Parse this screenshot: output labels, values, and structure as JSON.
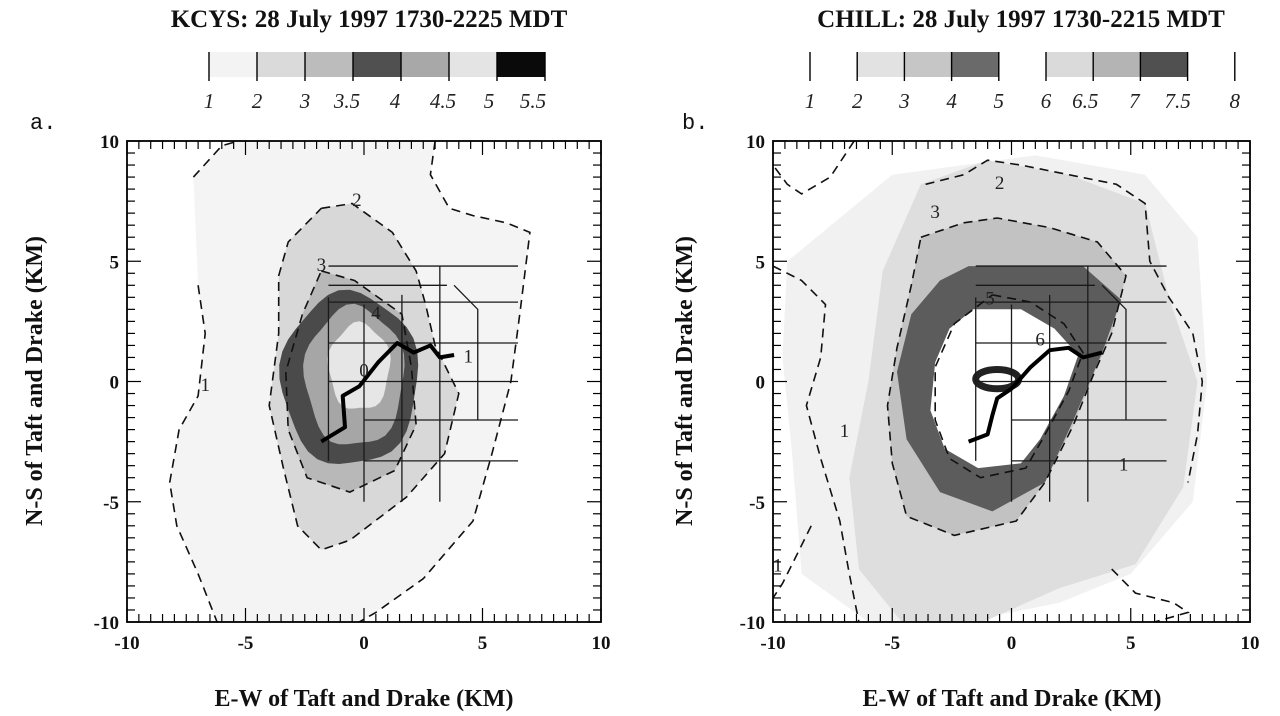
{
  "chart_data": [
    {
      "panel": "a.",
      "type": "contour",
      "title": "KCYS: 28 July 1997 1730-2225 MDT",
      "xlabel": "E-W of Taft and Drake (KM)",
      "ylabel": "N-S of Taft and Drake (KM)",
      "xlim": [
        -10,
        10
      ],
      "ylim": [
        -10,
        10
      ],
      "xticks": [
        "-10",
        "-5",
        "0",
        "5",
        "10"
      ],
      "yticks": [
        "-10",
        "-5",
        "0",
        "5",
        "10"
      ],
      "colorbar": {
        "labels": [
          "1",
          "2",
          "3",
          "3.5",
          "4",
          "4.5",
          "5",
          "5.5"
        ],
        "fills": [
          "#f3f3f3",
          "#dadada",
          "#bcbcbc",
          "#505050",
          "#a8a8a8",
          "#e4e4e4",
          "#0a0a0a"
        ]
      },
      "contour_labels": [
        {
          "text": "1",
          "x": -6.7,
          "y": -0.4
        },
        {
          "text": "2",
          "x": -0.3,
          "y": 7.3
        },
        {
          "text": "3",
          "x": -1.8,
          "y": 4.6
        },
        {
          "text": "4",
          "x": 0.5,
          "y": 2.6
        },
        {
          "text": "0",
          "x": 0.0,
          "y": 0.2
        },
        {
          "text": "1",
          "x": 4.4,
          "y": 0.8
        }
      ],
      "dashed_contours": [
        [
          [
            -7.2,
            8.5
          ],
          [
            -6.0,
            9.8
          ],
          [
            -5.3,
            10.0
          ]
        ],
        [
          [
            -7.0,
            4.0
          ],
          [
            -6.7,
            2.0
          ],
          [
            -7.0,
            -0.6
          ],
          [
            -7.8,
            -2.0
          ],
          [
            -8.2,
            -4.2
          ],
          [
            -7.9,
            -6.0
          ],
          [
            -7.0,
            -8.0
          ],
          [
            -6.2,
            -10.0
          ]
        ],
        [
          [
            3.0,
            10.0
          ],
          [
            2.8,
            8.6
          ],
          [
            3.6,
            7.2
          ],
          [
            4.6,
            6.9
          ],
          [
            6.0,
            6.6
          ],
          [
            7.0,
            6.2
          ],
          [
            6.6,
            3.0
          ],
          [
            6.2,
            0.0
          ],
          [
            5.4,
            -3.0
          ],
          [
            4.6,
            -5.8
          ],
          [
            2.5,
            -8.2
          ],
          [
            0.5,
            -9.6
          ],
          [
            -0.2,
            -10.0
          ]
        ],
        [
          [
            -1.8,
            7.2
          ],
          [
            -0.5,
            7.4
          ],
          [
            1.2,
            6.2
          ],
          [
            2.2,
            4.6
          ],
          [
            2.6,
            3.2
          ],
          [
            3.0,
            1.5
          ],
          [
            4.0,
            -0.5
          ],
          [
            3.4,
            -3.0
          ],
          [
            1.8,
            -4.8
          ],
          [
            -0.6,
            -6.6
          ],
          [
            -1.8,
            -7.0
          ],
          [
            -2.8,
            -6.0
          ],
          [
            -3.4,
            -3.6
          ],
          [
            -4.0,
            -1.0
          ],
          [
            -3.6,
            2.0
          ],
          [
            -3.6,
            4.4
          ],
          [
            -3.2,
            5.8
          ],
          [
            -1.8,
            7.2
          ]
        ],
        [
          [
            -1.8,
            4.6
          ],
          [
            -0.4,
            4.2
          ],
          [
            1.6,
            2.8
          ],
          [
            2.0,
            0.6
          ],
          [
            2.2,
            -1.8
          ],
          [
            1.3,
            -3.7
          ],
          [
            -0.6,
            -4.6
          ],
          [
            -2.4,
            -4.0
          ],
          [
            -3.2,
            -2.0
          ],
          [
            -3.3,
            0.4
          ],
          [
            -2.6,
            2.8
          ],
          [
            -1.8,
            4.6
          ]
        ]
      ],
      "storm_track": [
        [
          -1.8,
          -2.5
        ],
        [
          -0.8,
          -1.9
        ],
        [
          -0.9,
          -0.6
        ],
        [
          -0.2,
          -0.2
        ],
        [
          0.6,
          0.8
        ],
        [
          1.4,
          1.6
        ],
        [
          2.1,
          1.2
        ],
        [
          2.8,
          1.5
        ],
        [
          3.2,
          1.0
        ],
        [
          3.8,
          1.1
        ]
      ]
    },
    {
      "panel": "b.",
      "type": "contour",
      "title": "CHILL: 28 July 1997 1730-2215 MDT",
      "xlabel": "E-W of Taft and Drake (KM)",
      "ylabel": "N-S of Taft and Drake (KM)",
      "xlim": [
        -10,
        10
      ],
      "ylim": [
        -10,
        10
      ],
      "xticks": [
        "-10",
        "-5",
        "0",
        "5",
        "10"
      ],
      "yticks": [
        "-10",
        "-5",
        "0",
        "5",
        "10"
      ],
      "colorbar": {
        "labels": [
          "1",
          "2",
          "3",
          "4",
          "5",
          "6",
          "6.5",
          "7",
          "7.5",
          "8"
        ],
        "fills": [
          "#ffffff",
          "#e2e2e2",
          "#c6c6c6",
          "#6a6a6a",
          "#ffffff",
          "#dadada",
          "#b4b4b4",
          "#505050",
          "#ffffff"
        ]
      },
      "contour_labels": [
        {
          "text": "2",
          "x": -0.5,
          "y": 8.0
        },
        {
          "text": "3",
          "x": -3.2,
          "y": 6.8
        },
        {
          "text": "5",
          "x": -0.9,
          "y": 3.2
        },
        {
          "text": "6",
          "x": 1.2,
          "y": 1.5
        },
        {
          "text": "1",
          "x": -7.0,
          "y": -2.3
        },
        {
          "text": "1",
          "x": 4.7,
          "y": -3.7
        },
        {
          "text": "1",
          "x": -9.8,
          "y": -7.9
        }
      ],
      "dashed_contours": [
        [
          [
            -10.0,
            4.8
          ],
          [
            -8.8,
            4.2
          ],
          [
            -7.8,
            3.2
          ],
          [
            -8.0,
            1.0
          ],
          [
            -8.6,
            -1.0
          ],
          [
            -8.0,
            -3.2
          ],
          [
            -7.2,
            -5.8
          ],
          [
            -6.8,
            -8.0
          ],
          [
            -6.4,
            -10.0
          ]
        ],
        [
          [
            -3.6,
            8.2
          ],
          [
            -2.0,
            8.6
          ],
          [
            -1.0,
            9.2
          ],
          [
            0.4,
            9.0
          ],
          [
            2.4,
            8.6
          ],
          [
            4.4,
            8.2
          ],
          [
            5.6,
            7.4
          ],
          [
            5.8,
            5.0
          ],
          [
            6.6,
            3.5
          ],
          [
            7.6,
            2.0
          ],
          [
            8.0,
            0.0
          ],
          [
            7.8,
            -2.2
          ],
          [
            7.4,
            -4.2
          ]
        ],
        [
          [
            -3.8,
            6.0
          ],
          [
            -2.0,
            6.6
          ],
          [
            -0.6,
            6.8
          ],
          [
            1.6,
            6.4
          ],
          [
            3.6,
            5.8
          ],
          [
            4.8,
            4.4
          ],
          [
            4.2,
            2.0
          ],
          [
            3.4,
            0.2
          ],
          [
            2.6,
            -1.8
          ],
          [
            1.4,
            -4.2
          ],
          [
            0.2,
            -5.8
          ],
          [
            -2.4,
            -6.4
          ],
          [
            -4.4,
            -5.6
          ],
          [
            -5.0,
            -3.4
          ],
          [
            -5.2,
            -1.0
          ],
          [
            -4.8,
            1.4
          ],
          [
            -4.2,
            4.0
          ],
          [
            -3.8,
            6.0
          ]
        ],
        [
          [
            -0.8,
            3.6
          ],
          [
            0.8,
            3.3
          ],
          [
            2.2,
            2.4
          ],
          [
            3.0,
            1.2
          ],
          [
            2.4,
            -0.4
          ],
          [
            1.3,
            -2.4
          ],
          [
            0.6,
            -3.6
          ],
          [
            -1.3,
            -4.0
          ],
          [
            -2.6,
            -3.2
          ],
          [
            -3.2,
            -1.6
          ],
          [
            -3.2,
            0.6
          ],
          [
            -2.4,
            2.4
          ],
          [
            -0.8,
            3.6
          ]
        ],
        [
          [
            -6.6,
            10.0
          ],
          [
            -7.6,
            8.5
          ],
          [
            -8.8,
            7.8
          ],
          [
            -9.4,
            8.2
          ],
          [
            -10.0,
            9.0
          ]
        ],
        [
          [
            -8.4,
            -6.0
          ],
          [
            -9.0,
            -7.2
          ],
          [
            -9.6,
            -8.4
          ],
          [
            -10.0,
            -9.0
          ]
        ],
        [
          [
            4.2,
            -7.8
          ],
          [
            5.2,
            -8.8
          ],
          [
            6.8,
            -9.2
          ],
          [
            7.4,
            -9.6
          ],
          [
            6.0,
            -10.0
          ]
        ]
      ],
      "storm_track": [
        [
          -1.8,
          -2.5
        ],
        [
          -1.0,
          -2.2
        ],
        [
          -0.8,
          -1.4
        ],
        [
          -0.6,
          -0.7
        ],
        [
          0.0,
          -0.3
        ],
        [
          0.8,
          0.6
        ],
        [
          1.6,
          1.3
        ],
        [
          2.4,
          1.4
        ],
        [
          3.0,
          1.0
        ],
        [
          3.8,
          1.2
        ]
      ]
    }
  ]
}
